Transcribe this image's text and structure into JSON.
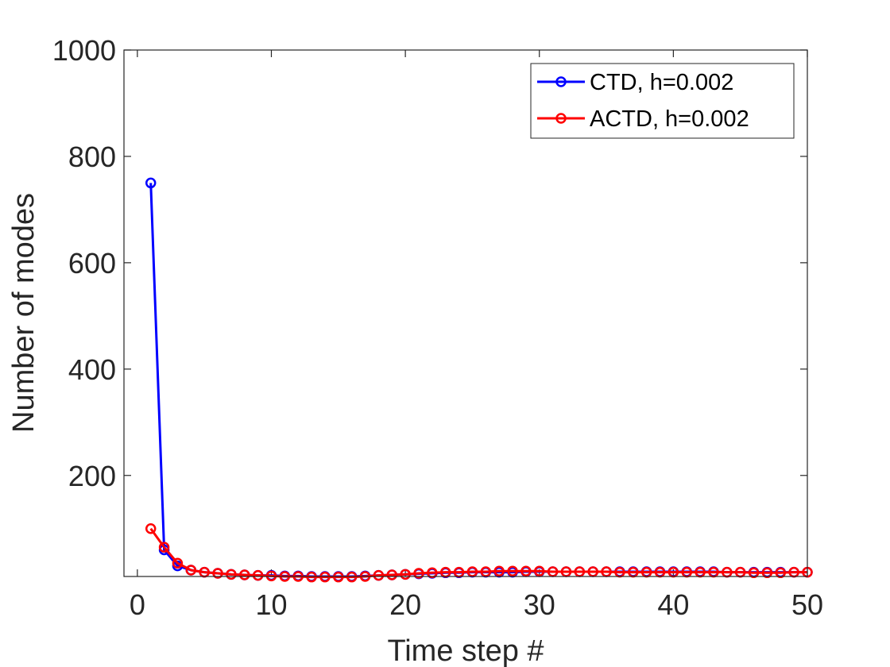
{
  "chart_data": {
    "type": "line",
    "title": "",
    "xlabel": "Time step #",
    "ylabel": "Number of modes",
    "xlim": [
      -1,
      50
    ],
    "ylim": [
      10,
      1000
    ],
    "xticks": [
      0,
      10,
      20,
      30,
      40,
      50
    ],
    "yticks": [
      200,
      400,
      600,
      800,
      1000
    ],
    "x": [
      1,
      2,
      3,
      4,
      5,
      6,
      7,
      8,
      9,
      10,
      11,
      12,
      13,
      14,
      15,
      16,
      17,
      18,
      19,
      20,
      21,
      22,
      23,
      24,
      25,
      26,
      27,
      28,
      29,
      30,
      31,
      32,
      33,
      34,
      35,
      36,
      37,
      38,
      39,
      40,
      41,
      42,
      43,
      44,
      45,
      46,
      47,
      48,
      49,
      50
    ],
    "series": [
      {
        "name": "CTD, h=0.002",
        "color": "#0000ff",
        "marker": "circle",
        "values": [
          750,
          60,
          30,
          22,
          18,
          16,
          14,
          13,
          12,
          12,
          11,
          11,
          10,
          10,
          10,
          10,
          11,
          12,
          13,
          14,
          15,
          16,
          17,
          17,
          18,
          18,
          18,
          18,
          19,
          19,
          19,
          19,
          19,
          19,
          19,
          19,
          19,
          19,
          19,
          19,
          19,
          19,
          19,
          18,
          18,
          18,
          18,
          18,
          18,
          18
        ]
      },
      {
        "name": "ACTD, h=0.002",
        "color": "#ff0000",
        "marker": "circle",
        "values": [
          100,
          65,
          35,
          22,
          18,
          16,
          14,
          13,
          12,
          11,
          10,
          10,
          9,
          9,
          9,
          9,
          10,
          12,
          13,
          14,
          16,
          17,
          18,
          18,
          19,
          19,
          20,
          20,
          20,
          20,
          19,
          19,
          19,
          19,
          19,
          18,
          18,
          18,
          18,
          18,
          18,
          18,
          18,
          18,
          18,
          17,
          17,
          17,
          18,
          18
        ]
      }
    ],
    "legend_position": "top-right",
    "grid": false,
    "box": true
  }
}
